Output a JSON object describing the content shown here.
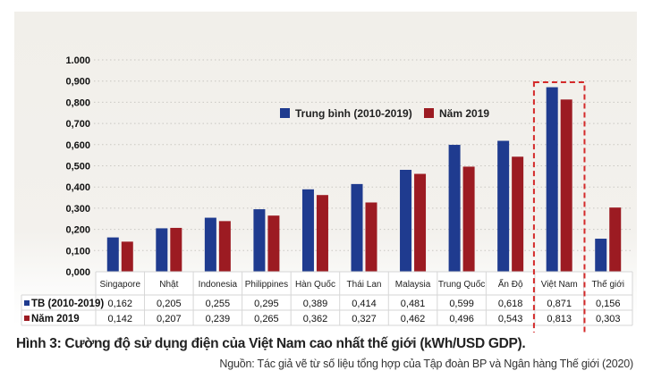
{
  "chart_data": {
    "type": "bar",
    "title": "",
    "xlabel": "",
    "ylabel": "",
    "ylim": [
      0,
      1.0
    ],
    "yticks": [
      "0,000",
      "0,100",
      "0,200",
      "0,300",
      "0,400",
      "0,500",
      "0,600",
      "0,700",
      "0,800",
      "0,900",
      "1.000"
    ],
    "grid": true,
    "legend_position": "top-center",
    "categories": [
      "Singapore",
      "Nhật",
      "Indonesia",
      "Philippines",
      "Hàn Quốc",
      "Thái Lan",
      "Malaysia",
      "Trung Quốc",
      "Ấn Độ",
      "Việt Nam",
      "Thế giới"
    ],
    "series": [
      {
        "name": "Trung bình (2010-2019)",
        "table_label": "TB (2010-2019)",
        "color": "#1f3b8f",
        "values": [
          0.162,
          0.205,
          0.255,
          0.295,
          0.389,
          0.414,
          0.481,
          0.599,
          0.618,
          0.871,
          0.156
        ],
        "labels": [
          "0,162",
          "0,205",
          "0,255",
          "0,295",
          "0,389",
          "0,414",
          "0,481",
          "0,599",
          "0,618",
          "0,871",
          "0,156"
        ]
      },
      {
        "name": "Năm 2019",
        "table_label": "Năm 2019",
        "color": "#9c1b22",
        "values": [
          0.142,
          0.207,
          0.239,
          0.265,
          0.362,
          0.327,
          0.462,
          0.496,
          0.543,
          0.813,
          0.303
        ],
        "labels": [
          "0,142",
          "0,207",
          "0,239",
          "0,265",
          "0,362",
          "0,327",
          "0,462",
          "0,496",
          "0,543",
          "0,813",
          "0,303"
        ]
      }
    ],
    "highlight": {
      "category": "Việt Nam",
      "style": "dashed-box",
      "color": "#d42a2a"
    },
    "data_table": true
  },
  "caption": "Hình 3: Cường độ sử dụng điện của Việt Nam cao nhất thế giới (kWh/USD GDP).",
  "source": "Nguồn: Tác giả vẽ từ số liệu tổng hợp của Tập đoàn BP và Ngân hàng Thế giới (2020)"
}
